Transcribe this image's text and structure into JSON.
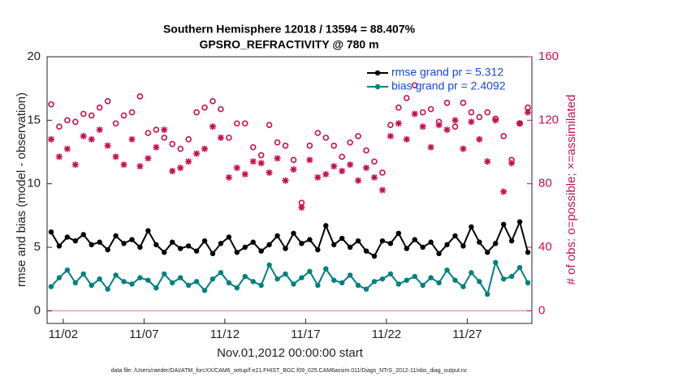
{
  "chart_data": {
    "type": "line",
    "title": "Southern Hemisphere 12018 / 13594 = 88.407%",
    "subtitle": "GPSRO_REFRACTIVITY @ 780 m",
    "x_label": "Nov.01,2012 00:00:00 start",
    "y_label": "rmse and bias (model - observation)",
    "y2_label": "# of obs: o=possible; ×=assimilated",
    "footnote": "data file: /Users/raeder/DAI/ATM_forcXX/CAM6_setup/f.e21.FHIST_BGC.f09_025.CAM6assim.011/Diags_NTrS_2012-11/obs_diag_output.nc",
    "legend": "upper right",
    "xlim": [
      0,
      30
    ],
    "xticks": [
      {
        "value": 1,
        "label": "11/02"
      },
      {
        "value": 6,
        "label": "11/07"
      },
      {
        "value": 11,
        "label": "11/12"
      },
      {
        "value": 16,
        "label": "11/17"
      },
      {
        "value": 21,
        "label": "11/22"
      },
      {
        "value": 26,
        "label": "11/27"
      }
    ],
    "ylim": [
      -1,
      20
    ],
    "yticks": [
      0,
      5,
      10,
      15,
      20
    ],
    "y2lim": [
      -8,
      160
    ],
    "y2ticks": [
      0,
      40,
      80,
      120,
      160
    ],
    "x": [
      0.25,
      0.75,
      1.25,
      1.75,
      2.25,
      2.75,
      3.25,
      3.75,
      4.25,
      4.75,
      5.25,
      5.75,
      6.25,
      6.75,
      7.25,
      7.75,
      8.25,
      8.75,
      9.25,
      9.75,
      10.25,
      10.75,
      11.25,
      11.75,
      12.25,
      12.75,
      13.25,
      13.75,
      14.25,
      14.75,
      15.25,
      15.75,
      16.25,
      16.75,
      17.25,
      17.75,
      18.25,
      18.75,
      19.25,
      19.75,
      20.25,
      20.75,
      21.25,
      21.75,
      22.25,
      22.75,
      23.25,
      23.75,
      24.25,
      24.75,
      25.25,
      25.75,
      26.25,
      26.75,
      27.25,
      27.75,
      28.25,
      28.75,
      29.25,
      29.75
    ],
    "series": [
      {
        "name": "rmse grand pr = 5.312",
        "color": "#000000",
        "values": [
          6.2,
          5.1,
          5.8,
          5.5,
          6.0,
          5.2,
          5.4,
          4.8,
          5.9,
          5.3,
          5.6,
          5.0,
          6.3,
          5.2,
          4.6,
          5.4,
          4.9,
          5.1,
          4.7,
          5.5,
          4.5,
          5.3,
          5.8,
          4.6,
          5.0,
          5.4,
          4.7,
          5.2,
          5.9,
          4.9,
          6.1,
          5.3,
          5.6,
          4.8,
          6.7,
          5.2,
          5.7,
          5.0,
          5.5,
          4.7,
          4.3,
          5.5,
          5.3,
          6.1,
          4.9,
          5.6,
          5.0,
          5.4,
          4.5,
          5.2,
          5.9,
          5.1,
          6.6,
          5.4,
          4.6,
          5.3,
          6.8,
          5.5,
          7.0,
          4.6
        ]
      },
      {
        "name": "bias grand pr = 2.4092",
        "color": "#008080",
        "values": [
          1.9,
          2.6,
          3.2,
          2.2,
          2.9,
          2.0,
          2.5,
          1.7,
          2.8,
          2.3,
          2.1,
          2.6,
          2.4,
          1.8,
          2.9,
          2.2,
          2.6,
          2.0,
          2.3,
          1.6,
          2.5,
          3.0,
          2.2,
          1.8,
          2.7,
          2.3,
          2.0,
          3.6,
          2.5,
          2.9,
          2.1,
          2.6,
          3.1,
          2.0,
          3.3,
          2.4,
          2.2,
          2.8,
          2.0,
          1.7,
          2.3,
          2.5,
          2.9,
          2.1,
          2.4,
          2.7,
          2.0,
          2.6,
          2.2,
          3.2,
          2.4,
          1.9,
          3.0,
          2.3,
          1.3,
          3.8,
          2.5,
          2.7,
          3.4,
          2.2
        ]
      },
      {
        "name": "possible",
        "color": "#c8104a",
        "axis": "y2",
        "values": [
          130,
          116,
          120,
          119,
          124,
          123,
          128,
          132,
          118,
          123,
          125,
          135,
          112,
          114,
          109,
          105,
          102,
          108,
          125,
          128,
          132,
          127,
          109,
          118,
          118,
          103,
          98,
          117,
          106,
          104,
          95,
          68,
          104,
          112,
          109,
          104,
          97,
          106,
          110,
          101,
          94,
          87,
          117,
          128,
          134,
          142,
          125,
          127,
          119,
          131,
          116,
          131,
          125,
          122,
          125,
          121,
          110,
          95,
          118,
          128
        ]
      },
      {
        "name": "assimilated",
        "color": "#c8104a",
        "axis": "y2",
        "values": [
          108,
          97,
          102,
          92,
          110,
          108,
          114,
          104,
          97,
          92,
          108,
          91,
          96,
          103,
          114,
          88,
          90,
          94,
          99,
          102,
          116,
          109,
          84,
          90,
          86,
          94,
          93,
          87,
          96,
          82,
          89,
          65,
          95,
          84,
          86,
          91,
          88,
          92,
          82,
          90,
          84,
          76,
          110,
          118,
          108,
          124,
          116,
          103,
          117,
          114,
          120,
          102,
          119,
          108,
          94,
          120,
          75,
          93,
          118,
          125
        ]
      }
    ]
  }
}
